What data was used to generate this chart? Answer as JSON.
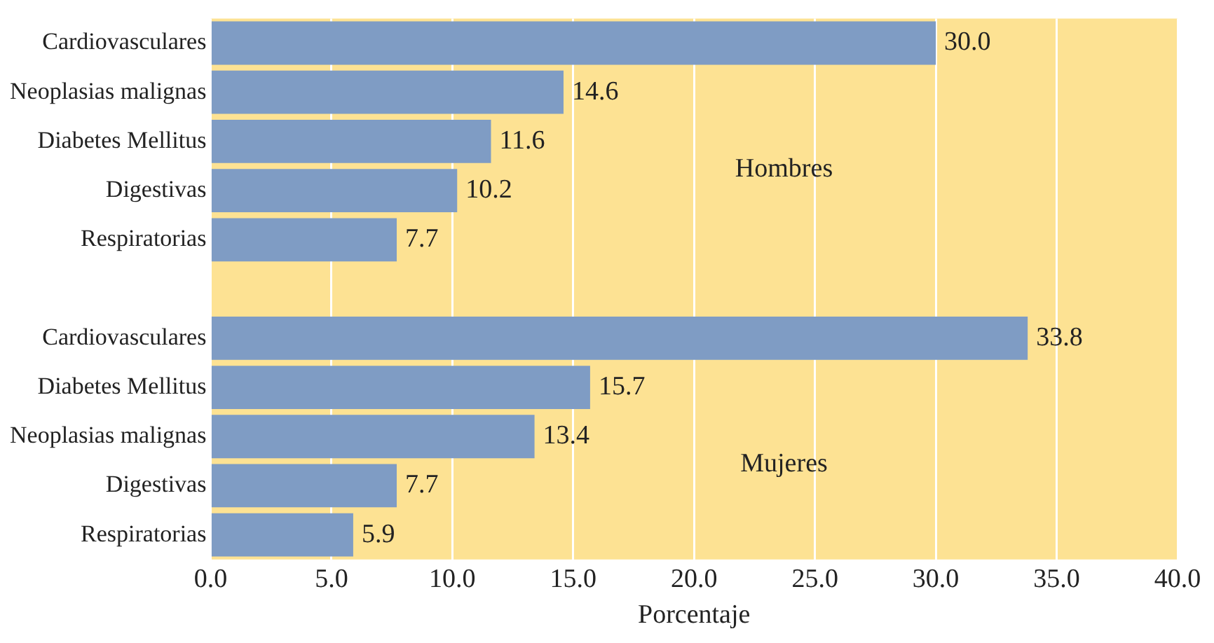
{
  "chart_data": {
    "type": "bar",
    "orientation": "horizontal",
    "xlabel": "Porcentaje",
    "categories": [
      "Cardiovasculares",
      "Neoplasias malignas",
      "Diabetes Mellitus",
      "Digestivas",
      "Respiratorias",
      null,
      "Cardiovasculares",
      "Diabetes Mellitus",
      "Neoplasias malignas",
      "Digestivas",
      "Respiratorias"
    ],
    "values": [
      30.0,
      14.6,
      11.6,
      10.2,
      7.7,
      null,
      33.8,
      15.7,
      13.4,
      7.7,
      5.9
    ],
    "color": "#7f9cc4",
    "xlim": [
      0,
      40
    ],
    "xticks": [
      {
        "value": 0,
        "label": "0.0"
      },
      {
        "value": 5,
        "label": "5.0"
      },
      {
        "value": 10,
        "label": "10.0"
      },
      {
        "value": 15,
        "label": "15.0"
      },
      {
        "value": 20,
        "label": "20.0"
      },
      {
        "value": 25,
        "label": "25.0"
      },
      {
        "value": 30,
        "label": "30.0"
      },
      {
        "value": 35,
        "label": "35.0"
      },
      {
        "value": 40,
        "label": "40.0"
      }
    ],
    "value_labels": [
      "30.0",
      "14.6",
      "11.6",
      "10.2",
      "7.7",
      null,
      "33.8",
      "15.7",
      "13.4",
      "7.7",
      "5.9"
    ],
    "grid": "x",
    "legend": false,
    "annotations": [
      "Hombres",
      "Mujeres"
    ]
  }
}
